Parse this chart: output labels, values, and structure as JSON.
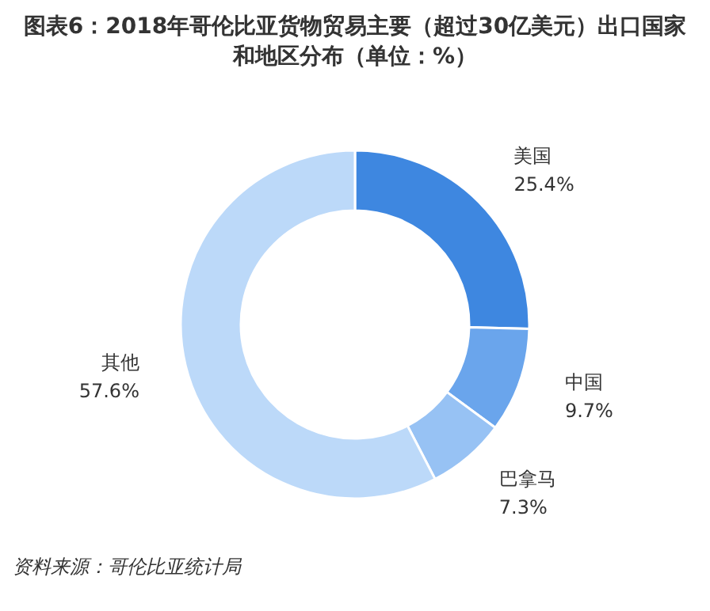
{
  "chart_data": {
    "type": "donut",
    "title": "图表6：2018年哥伦比亚货物贸易主要（超过30亿美元）出口国家和地区分布（单位：%）",
    "categories": [
      "美国",
      "中国",
      "巴拿马",
      "其他"
    ],
    "values": [
      25.4,
      9.7,
      7.3,
      57.6
    ],
    "colors": [
      "#3e87e0",
      "#6aa5ec",
      "#97c2f4",
      "#bcd9f9"
    ],
    "value_labels": [
      "25.4%",
      "9.7%",
      "7.3%",
      "57.6%"
    ],
    "annotations": [
      "资料来源：哥伦比亚统计局"
    ]
  }
}
